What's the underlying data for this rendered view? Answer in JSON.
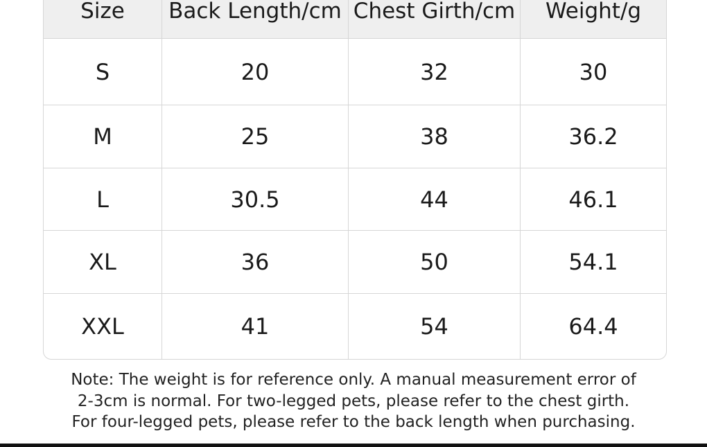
{
  "table": {
    "header": [
      "Size",
      "Back Length/cm",
      "Chest Girth/cm",
      "Weight/g"
    ],
    "rows": [
      [
        "S",
        "20",
        "32",
        "30"
      ],
      [
        "M",
        "25",
        "38",
        "36.2"
      ],
      [
        "L",
        "30.5",
        "44",
        "46.1"
      ],
      [
        "XL",
        "36",
        "50",
        "54.1"
      ],
      [
        "XXL",
        "41",
        "54",
        "64.4"
      ]
    ]
  },
  "note": [
    "Note: The weight is for reference only. A manual measurement error of",
    "2-3cm is normal. For two-legged pets, please refer to the chest girth.",
    "For four-legged pets, please refer to the back length when purchasing."
  ]
}
